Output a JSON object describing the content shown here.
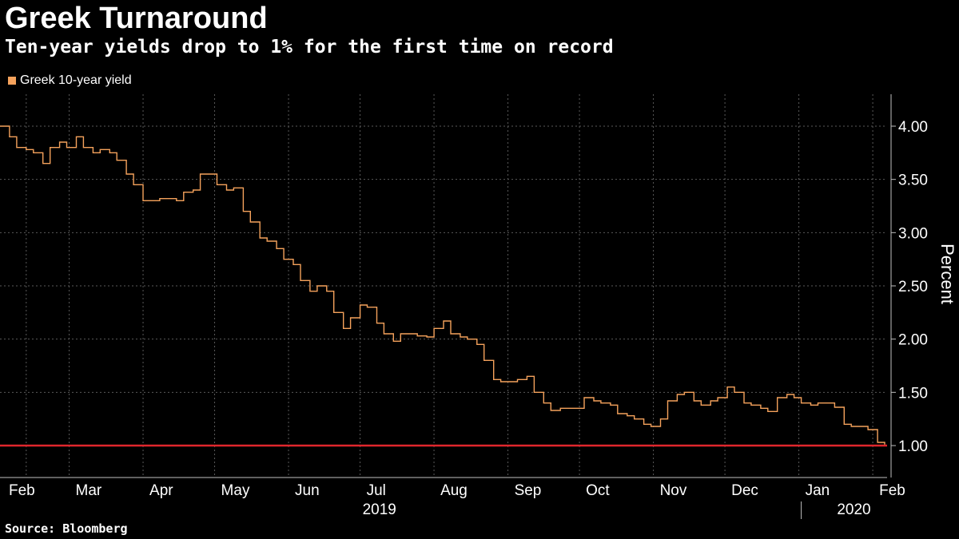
{
  "header": {
    "title": "Greek Turnaround",
    "subtitle": "Ten-year yields drop to 1% for the first time on record"
  },
  "legend": {
    "label": "Greek 10-year yield",
    "color": "#f5a25c"
  },
  "footer": {
    "source": "Source: Bloomberg"
  },
  "colors": {
    "background": "#000000",
    "line": "#f5a25c",
    "reference_line": "#e0262d",
    "grid": "#5a5a5a",
    "axis": "#bfbfbf"
  },
  "chart_data": {
    "type": "line",
    "title": "Greek Turnaround",
    "subtitle": "Ten-year yields drop to 1% for the first time on record",
    "ylabel": "Percent",
    "xlabel": "",
    "ylim": [
      0.7,
      4.3
    ],
    "y_ticks": [
      {
        "value": 4.0,
        "label": "4.00"
      },
      {
        "value": 3.5,
        "label": "3.50"
      },
      {
        "value": 3.0,
        "label": "3.00"
      },
      {
        "value": 2.5,
        "label": "2.50"
      },
      {
        "value": 2.0,
        "label": "2.00"
      },
      {
        "value": 1.5,
        "label": "1.50"
      },
      {
        "value": 1.0,
        "label": "1.00"
      }
    ],
    "x_range": [
      "2019-01-31",
      "2020-02-07"
    ],
    "x_month_labels": [
      {
        "date": "2019-02-01",
        "label": "Feb"
      },
      {
        "date": "2019-03-01",
        "label": "Mar"
      },
      {
        "date": "2019-04-01",
        "label": "Apr"
      },
      {
        "date": "2019-05-01",
        "label": "May"
      },
      {
        "date": "2019-06-01",
        "label": "Jun"
      },
      {
        "date": "2019-07-01",
        "label": "Jul"
      },
      {
        "date": "2019-08-01",
        "label": "Aug"
      },
      {
        "date": "2019-09-01",
        "label": "Sep"
      },
      {
        "date": "2019-10-01",
        "label": "Oct"
      },
      {
        "date": "2019-11-01",
        "label": "Nov"
      },
      {
        "date": "2019-12-01",
        "label": "Dec"
      },
      {
        "date": "2020-01-01",
        "label": "Jan"
      },
      {
        "date": "2020-02-01",
        "label": "Feb"
      }
    ],
    "x_year_labels": [
      {
        "date": "2019-07-01",
        "label": "2019"
      },
      {
        "date": "2020-01-16",
        "label": "2020"
      }
    ],
    "year_divider_date": "2020-01-01",
    "grid_dates": [
      "2019-02-11",
      "2019-03-01",
      "2019-04-01",
      "2019-05-01",
      "2019-06-01",
      "2019-07-01",
      "2019-08-01",
      "2019-09-01",
      "2019-10-01",
      "2019-11-01",
      "2019-12-01",
      "2020-01-01",
      "2020-02-01"
    ],
    "reference_line": {
      "value": 1.0
    },
    "series": [
      {
        "name": "Greek 10-year yield",
        "x": [
          "2019-01-31",
          "2019-02-04",
          "2019-02-07",
          "2019-02-11",
          "2019-02-14",
          "2019-02-18",
          "2019-02-21",
          "2019-02-25",
          "2019-02-28",
          "2019-03-04",
          "2019-03-07",
          "2019-03-11",
          "2019-03-14",
          "2019-03-18",
          "2019-03-21",
          "2019-03-25",
          "2019-03-28",
          "2019-04-01",
          "2019-04-04",
          "2019-04-08",
          "2019-04-11",
          "2019-04-15",
          "2019-04-18",
          "2019-04-22",
          "2019-04-25",
          "2019-04-29",
          "2019-05-02",
          "2019-05-06",
          "2019-05-09",
          "2019-05-13",
          "2019-05-16",
          "2019-05-20",
          "2019-05-23",
          "2019-05-27",
          "2019-05-30",
          "2019-06-03",
          "2019-06-06",
          "2019-06-10",
          "2019-06-13",
          "2019-06-17",
          "2019-06-20",
          "2019-06-24",
          "2019-06-27",
          "2019-07-01",
          "2019-07-04",
          "2019-07-08",
          "2019-07-11",
          "2019-07-15",
          "2019-07-18",
          "2019-07-22",
          "2019-07-25",
          "2019-07-29",
          "2019-08-01",
          "2019-08-05",
          "2019-08-08",
          "2019-08-12",
          "2019-08-15",
          "2019-08-19",
          "2019-08-22",
          "2019-08-26",
          "2019-08-29",
          "2019-09-02",
          "2019-09-05",
          "2019-09-09",
          "2019-09-12",
          "2019-09-16",
          "2019-09-19",
          "2019-09-23",
          "2019-09-26",
          "2019-09-30",
          "2019-10-03",
          "2019-10-07",
          "2019-10-10",
          "2019-10-14",
          "2019-10-17",
          "2019-10-21",
          "2019-10-24",
          "2019-10-28",
          "2019-10-31",
          "2019-11-04",
          "2019-11-07",
          "2019-11-11",
          "2019-11-14",
          "2019-11-18",
          "2019-11-21",
          "2019-11-25",
          "2019-11-28",
          "2019-12-02",
          "2019-12-05",
          "2019-12-09",
          "2019-12-12",
          "2019-12-16",
          "2019-12-19",
          "2019-12-23",
          "2019-12-27",
          "2019-12-30",
          "2020-01-02",
          "2020-01-06",
          "2020-01-09",
          "2020-01-13",
          "2020-01-16",
          "2020-01-20",
          "2020-01-23",
          "2020-01-27",
          "2020-01-30",
          "2020-02-03",
          "2020-02-06"
        ],
        "values": [
          4.0,
          3.9,
          3.8,
          3.78,
          3.75,
          3.65,
          3.8,
          3.85,
          3.8,
          3.9,
          3.8,
          3.75,
          3.78,
          3.75,
          3.68,
          3.55,
          3.45,
          3.3,
          3.3,
          3.32,
          3.32,
          3.3,
          3.38,
          3.4,
          3.55,
          3.55,
          3.45,
          3.4,
          3.42,
          3.2,
          3.1,
          2.95,
          2.92,
          2.85,
          2.75,
          2.7,
          2.55,
          2.45,
          2.5,
          2.45,
          2.25,
          2.1,
          2.2,
          2.32,
          2.3,
          2.15,
          2.05,
          1.98,
          2.05,
          2.05,
          2.03,
          2.02,
          2.1,
          2.17,
          2.05,
          2.02,
          2.0,
          1.95,
          1.8,
          1.62,
          1.6,
          1.6,
          1.62,
          1.65,
          1.5,
          1.4,
          1.33,
          1.35,
          1.35,
          1.35,
          1.45,
          1.42,
          1.4,
          1.38,
          1.3,
          1.28,
          1.25,
          1.2,
          1.18,
          1.25,
          1.42,
          1.48,
          1.5,
          1.42,
          1.38,
          1.42,
          1.45,
          1.55,
          1.5,
          1.4,
          1.38,
          1.35,
          1.32,
          1.45,
          1.48,
          1.45,
          1.4,
          1.38,
          1.4,
          1.4,
          1.36,
          1.2,
          1.18,
          1.18,
          1.15,
          1.03,
          1.01
        ]
      }
    ]
  }
}
